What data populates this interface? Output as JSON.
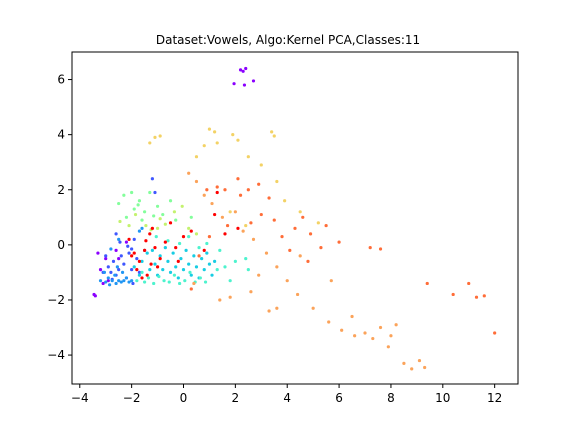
{
  "chart_data": {
    "type": "scatter",
    "title": "Dataset:Vowels, Algo:Kernel PCA,Classes:11",
    "xlabel": "",
    "ylabel": "",
    "xlim": [
      -4.3,
      12.9
    ],
    "ylim": [
      -5.05,
      7.0
    ],
    "xticks": [
      -4,
      -2,
      0,
      2,
      4,
      6,
      8,
      10,
      12
    ],
    "xtick_labels": [
      "−4",
      "−2",
      "0",
      "2",
      "4",
      "6",
      "8",
      "10",
      "12"
    ],
    "yticks": [
      -4,
      -2,
      0,
      2,
      4,
      6
    ],
    "ytick_labels": [
      "−4",
      "−2",
      "0",
      "2",
      "4",
      "6"
    ],
    "grid": false,
    "legend": false,
    "marker_size": 1.6,
    "series": [
      {
        "color": "#8b00ff",
        "points": [
          [
            2.2,
            6.35
          ],
          [
            2.4,
            6.4
          ],
          [
            2.3,
            6.3
          ],
          [
            1.95,
            5.85
          ],
          [
            2.7,
            5.95
          ],
          [
            2.35,
            5.8
          ],
          [
            -3.3,
            -0.3
          ],
          [
            -3.2,
            -0.9
          ],
          [
            -3.0,
            -0.5
          ],
          [
            -2.6,
            -0.2
          ],
          [
            -2.2,
            0.1
          ],
          [
            -3.45,
            -1.8
          ],
          [
            -3.4,
            -1.85
          ],
          [
            -3.1,
            -1.4
          ],
          [
            -2.9,
            -1.3
          ],
          [
            -2.5,
            -0.5
          ]
        ]
      },
      {
        "color": "#3f57ff",
        "points": [
          [
            -3.0,
            -0.4
          ],
          [
            -2.9,
            -0.8
          ],
          [
            -2.8,
            -1.0
          ],
          [
            -2.7,
            -0.6
          ],
          [
            -2.6,
            -1.1
          ],
          [
            -2.5,
            -0.9
          ],
          [
            -2.4,
            -0.4
          ],
          [
            -2.3,
            -0.7
          ],
          [
            -2.2,
            -1.2
          ],
          [
            -2.1,
            -0.3
          ],
          [
            -2.0,
            -0.9
          ],
          [
            -1.9,
            0.2
          ],
          [
            -2.6,
            0.4
          ],
          [
            -2.45,
            0.1
          ],
          [
            -2.15,
            -0.05
          ],
          [
            -1.8,
            -0.5
          ],
          [
            -1.7,
            -1.0
          ],
          [
            -2.75,
            -1.25
          ],
          [
            -3.1,
            -1.0
          ],
          [
            -1.2,
            2.4
          ],
          [
            -1.1,
            1.9
          ],
          [
            -2.0,
            -0.15
          ],
          [
            -1.95,
            -1.4
          ]
        ]
      },
      {
        "color": "#2196f3",
        "points": [
          [
            -3.2,
            -1.3
          ],
          [
            -3.0,
            -1.35
          ],
          [
            -2.9,
            -1.2
          ],
          [
            -2.75,
            -1.3
          ],
          [
            -2.6,
            -1.4
          ],
          [
            -2.5,
            -1.3
          ],
          [
            -2.4,
            -1.35
          ],
          [
            -2.3,
            -1.3
          ],
          [
            -2.2,
            -1.2
          ],
          [
            -2.1,
            -1.35
          ],
          [
            -2.0,
            -1.3
          ],
          [
            -2.65,
            -1.1
          ],
          [
            -2.85,
            -1.45
          ],
          [
            -2.55,
            -0.8
          ],
          [
            -3.05,
            -1.0
          ],
          [
            -2.35,
            -1.0
          ],
          [
            -1.5,
            -0.2
          ],
          [
            -1.6,
            0.6
          ],
          [
            -2.5,
            0.2
          ],
          [
            -2.8,
            -0.15
          ],
          [
            -1.7,
            0.5
          ]
        ]
      },
      {
        "color": "#18cde3",
        "points": [
          [
            -1.9,
            -0.8
          ],
          [
            -1.7,
            -1.1
          ],
          [
            -1.6,
            -0.6
          ],
          [
            -1.4,
            -0.3
          ],
          [
            -1.3,
            -0.9
          ],
          [
            -1.2,
            -0.2
          ],
          [
            -1.1,
            -0.7
          ],
          [
            -1.0,
            -1.1
          ],
          [
            -0.9,
            -0.4
          ],
          [
            -0.8,
            -0.9
          ],
          [
            -0.7,
            -0.1
          ],
          [
            -0.6,
            -0.6
          ],
          [
            -0.5,
            -1.0
          ],
          [
            -0.4,
            -0.3
          ],
          [
            -0.3,
            -0.8
          ],
          [
            -0.2,
            -1.2
          ],
          [
            -0.1,
            -0.5
          ],
          [
            0.0,
            -0.9
          ],
          [
            0.1,
            -0.2
          ],
          [
            0.2,
            -0.7
          ],
          [
            0.3,
            -1.1
          ],
          [
            0.4,
            -0.4
          ],
          [
            0.5,
            -0.8
          ],
          [
            0.6,
            -1.2
          ],
          [
            0.7,
            -0.5
          ],
          [
            0.8,
            -0.9
          ],
          [
            0.9,
            -0.3
          ],
          [
            1.0,
            -0.7
          ],
          [
            1.1,
            -1.1
          ],
          [
            1.2,
            -0.6
          ]
        ]
      },
      {
        "color": "#4df3ce",
        "points": [
          [
            -1.8,
            -1.3
          ],
          [
            -1.6,
            -1.0
          ],
          [
            -1.5,
            -1.35
          ],
          [
            -1.35,
            -1.2
          ],
          [
            -1.15,
            -1.4
          ],
          [
            -0.95,
            -1.15
          ],
          [
            -0.75,
            -1.3
          ],
          [
            -0.55,
            -1.35
          ],
          [
            -0.35,
            -1.1
          ],
          [
            -0.15,
            -1.4
          ],
          [
            0.05,
            -1.3
          ],
          [
            0.25,
            -1.0
          ],
          [
            0.45,
            -1.35
          ],
          [
            0.65,
            -1.2
          ],
          [
            0.85,
            -1.35
          ],
          [
            1.3,
            -0.9
          ],
          [
            1.6,
            -0.8
          ],
          [
            2.0,
            -0.6
          ],
          [
            2.4,
            -0.5
          ],
          [
            2.5,
            -0.9
          ],
          [
            1.8,
            -1.3
          ],
          [
            1.4,
            -0.2
          ],
          [
            0.6,
            -0.1
          ],
          [
            -0.6,
            0.15
          ],
          [
            -1.05,
            0.3
          ],
          [
            -0.15,
            0.05
          ],
          [
            0.2,
            0.3
          ],
          [
            0.9,
            0.05
          ]
        ]
      },
      {
        "color": "#83fe9b",
        "points": [
          [
            -2.3,
            1.8
          ],
          [
            -2.0,
            1.9
          ],
          [
            -1.7,
            1.6
          ],
          [
            -1.5,
            1.2
          ],
          [
            -1.3,
            1.9
          ],
          [
            -1.0,
            1.4
          ],
          [
            -0.8,
            1.1
          ],
          [
            -1.9,
            1.3
          ],
          [
            -2.2,
            1.0
          ],
          [
            -1.6,
            0.9
          ],
          [
            -0.5,
            1.6
          ],
          [
            -1.15,
            1.05
          ],
          [
            -2.5,
            1.5
          ],
          [
            -1.75,
            1.45
          ],
          [
            0.3,
            1.0
          ],
          [
            -0.3,
            0.9
          ]
        ]
      },
      {
        "color": "#c4f26f",
        "points": [
          [
            -1.85,
            1.1
          ],
          [
            -1.45,
            0.7
          ],
          [
            -1.0,
            0.6
          ],
          [
            -0.7,
            0.75
          ],
          [
            -0.35,
            1.2
          ],
          [
            -2.45,
            0.85
          ],
          [
            -1.25,
            0.55
          ],
          [
            -0.9,
            0.95
          ],
          [
            0.2,
            0.6
          ],
          [
            0.5,
            0.4
          ],
          [
            -2.1,
            0.7
          ],
          [
            -0.05,
            1.4
          ]
        ]
      },
      {
        "color": "#f3d265",
        "points": [
          [
            1.0,
            4.2
          ],
          [
            1.2,
            4.1
          ],
          [
            1.3,
            3.7
          ],
          [
            1.9,
            4.0
          ],
          [
            2.1,
            3.8
          ],
          [
            3.4,
            4.1
          ],
          [
            3.5,
            3.95
          ],
          [
            -1.3,
            3.7
          ],
          [
            -1.1,
            3.9
          ],
          [
            -0.9,
            3.95
          ],
          [
            0.8,
            3.6
          ],
          [
            0.5,
            3.2
          ],
          [
            2.5,
            3.2
          ],
          [
            3.0,
            2.9
          ],
          [
            3.6,
            2.3
          ],
          [
            3.9,
            1.6
          ],
          [
            4.5,
            1.2
          ],
          [
            5.2,
            0.8
          ],
          [
            1.8,
            1.2
          ],
          [
            2.4,
            0.7
          ]
        ]
      },
      {
        "color": "#fba35a",
        "points": [
          [
            0.2,
            2.6
          ],
          [
            0.5,
            2.3
          ],
          [
            0.8,
            1.8
          ],
          [
            1.1,
            1.5
          ],
          [
            1.5,
            1.0
          ],
          [
            2.0,
            1.2
          ],
          [
            2.3,
            0.5
          ],
          [
            2.7,
            0.2
          ],
          [
            3.2,
            -0.3
          ],
          [
            3.6,
            -0.8
          ],
          [
            4.0,
            -1.3
          ],
          [
            4.4,
            -1.8
          ],
          [
            5.0,
            -2.3
          ],
          [
            5.6,
            -2.8
          ],
          [
            6.1,
            -3.1
          ],
          [
            6.5,
            -2.6
          ],
          [
            7.0,
            -3.2
          ],
          [
            7.3,
            -3.4
          ],
          [
            7.6,
            -3.0
          ],
          [
            8.0,
            -3.3
          ],
          [
            8.2,
            -2.9
          ],
          [
            8.5,
            -4.3
          ],
          [
            8.8,
            -4.5
          ],
          [
            9.1,
            -4.2
          ],
          [
            9.3,
            -4.45
          ],
          [
            1.4,
            -2.0
          ],
          [
            1.8,
            -1.9
          ],
          [
            2.6,
            -1.7
          ],
          [
            3.3,
            -2.4
          ],
          [
            3.6,
            -2.3
          ],
          [
            2.9,
            -1.1
          ],
          [
            4.5,
            -0.4
          ],
          [
            5.7,
            -1.3
          ],
          [
            6.6,
            -3.3
          ],
          [
            7.9,
            -3.7
          ],
          [
            0.4,
            -1.4
          ]
        ]
      },
      {
        "color": "#ff6d38",
        "points": [
          [
            0.9,
            2.0
          ],
          [
            1.3,
            2.1
          ],
          [
            1.6,
            2.0
          ],
          [
            2.1,
            2.4
          ],
          [
            2.5,
            2.0
          ],
          [
            2.9,
            2.2
          ],
          [
            3.3,
            1.7
          ],
          [
            3.5,
            0.9
          ],
          [
            3.8,
            0.3
          ],
          [
            4.1,
            -0.2
          ],
          [
            4.3,
            0.6
          ],
          [
            4.6,
            1.0
          ],
          [
            4.9,
            0.4
          ],
          [
            5.3,
            -0.1
          ],
          [
            5.5,
            0.7
          ],
          [
            6.0,
            0.1
          ],
          [
            7.2,
            -0.1
          ],
          [
            7.6,
            -0.15
          ],
          [
            9.4,
            -1.4
          ],
          [
            10.4,
            -1.8
          ],
          [
            11.0,
            -1.4
          ],
          [
            11.3,
            -1.9
          ],
          [
            11.6,
            -1.85
          ],
          [
            12.0,
            -3.2
          ],
          [
            2.2,
            1.8
          ],
          [
            3.0,
            1.1
          ],
          [
            2.6,
            0.8
          ],
          [
            1.7,
            0.7
          ],
          [
            4.8,
            -0.6
          ],
          [
            0.6,
            -0.4
          ],
          [
            1.0,
            0.3
          ],
          [
            0.3,
            -1.6
          ]
        ]
      },
      {
        "color": "#ff0000",
        "points": [
          [
            -2.1,
            0.2
          ],
          [
            -1.9,
            -0.3
          ],
          [
            -1.7,
            -0.6
          ],
          [
            -1.5,
            -0.2
          ],
          [
            -1.3,
            0.4
          ],
          [
            -1.1,
            -0.1
          ],
          [
            -0.9,
            -0.5
          ],
          [
            -1.4,
            -1.1
          ],
          [
            -1.6,
            -1.2
          ],
          [
            -1.0,
            -0.8
          ],
          [
            -0.7,
            0.1
          ],
          [
            -0.3,
            -0.1
          ],
          [
            -1.25,
            -0.7
          ],
          [
            -1.8,
            -0.9
          ],
          [
            -1.2,
            0.6
          ],
          [
            -0.5,
            0.8
          ],
          [
            0.0,
            0.3
          ],
          [
            0.3,
            0.5
          ],
          [
            1.2,
            1.1
          ],
          [
            1.3,
            1.9
          ],
          [
            1.6,
            0.4
          ],
          [
            2.1,
            0.6
          ],
          [
            0.8,
            -0.2
          ],
          [
            -0.2,
            -0.6
          ],
          [
            -2.0,
            -0.4
          ],
          [
            -1.45,
            0.15
          ]
        ]
      }
    ]
  }
}
